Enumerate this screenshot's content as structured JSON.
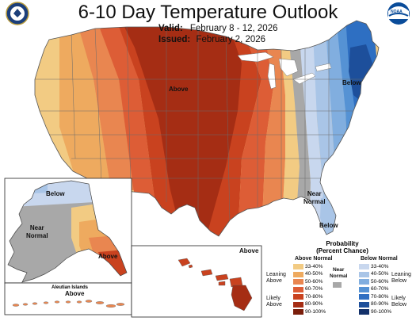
{
  "header": {
    "title": "6-10 Day Temperature Outlook",
    "valid_label": "Valid:",
    "valid_dates": "February 8 - 12, 2026",
    "issued_label": "Issued:",
    "issued_date": "February 2, 2026"
  },
  "logos": {
    "left": "noaa-commerce-seal-logo",
    "right": "noaa-logo",
    "right_text": "NOAA"
  },
  "map_labels": {
    "above_conus": "Above",
    "below_ne": "Below",
    "near_normal_se": "Near\nNormal",
    "below_fl": "Below",
    "ak_below": "Below",
    "ak_near_normal": "Near\nNormal",
    "ak_above": "Above",
    "hi_above": "Above",
    "aleutian_title": "Aleutian Islands",
    "aleutian_above": "Above"
  },
  "legend": {
    "title": "Probability\n(Percent Chance)",
    "above_heading": "Above Normal",
    "below_heading": "Below Normal",
    "near_heading": "Near\nNormal",
    "leaning_above": "Leaning\nAbove",
    "likely_above": "Likely\nAbove",
    "leaning_below": "Leaning\nBelow",
    "likely_below": "Likely\nBelow",
    "categories": [
      "33-40%",
      "40-50%",
      "50-60%",
      "60-70%",
      "70-80%",
      "80-90%",
      "90-100%"
    ],
    "above_colors": [
      "#f2cb83",
      "#eeaa5f",
      "#e98650",
      "#dd5d36",
      "#c9421f",
      "#a52d14",
      "#7a1e0b"
    ],
    "below_colors": [
      "#c8d7ee",
      "#a9c5e7",
      "#81aedf",
      "#5592d4",
      "#2e6fc2",
      "#1d4f9b",
      "#13316a"
    ],
    "near_color": "#a8a8a8"
  }
}
